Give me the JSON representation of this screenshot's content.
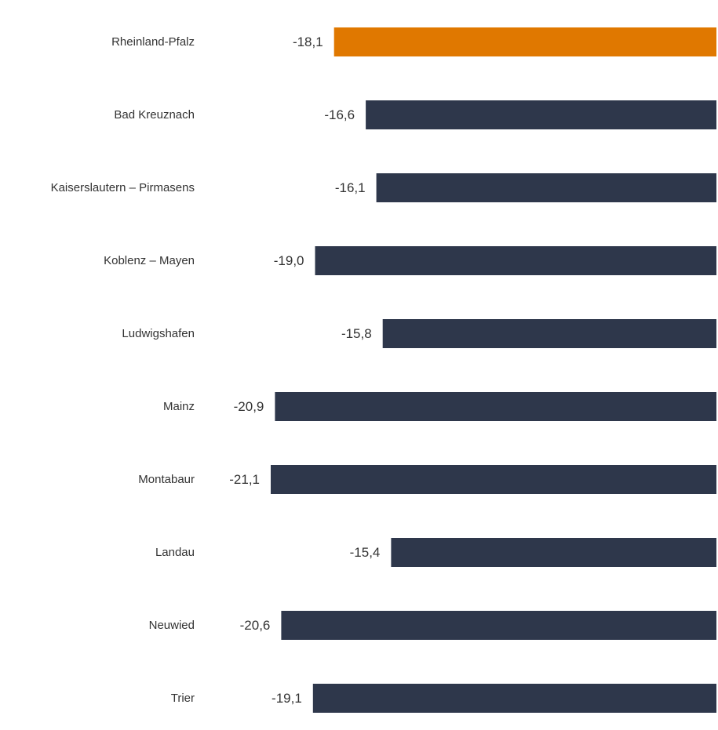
{
  "chart_data": {
    "type": "bar",
    "orientation": "horizontal",
    "direction": "negative-values-extend-left",
    "categories": [
      "Rheinland-Pfalz",
      "Bad Kreuznach",
      "Kaiserslautern – Pirmasens",
      "Koblenz – Mayen",
      "Ludwigshafen",
      "Mainz",
      "Montabaur",
      "Landau",
      "Neuwied",
      "Trier"
    ],
    "values": [
      -18.1,
      -16.6,
      -16.1,
      -19.0,
      -15.8,
      -20.9,
      -21.1,
      -15.4,
      -20.6,
      -19.1
    ],
    "value_labels": [
      "-18,1",
      "-16,6",
      "-16,1",
      "-19,0",
      "-15,8",
      "-20,9",
      "-21,1",
      "-15,4",
      "-20,6",
      "-19,1"
    ],
    "highlight_index": 0,
    "colors": {
      "highlight": "#E07800",
      "default": "#2E374B",
      "text": "#333333"
    },
    "xlim": [
      -21.1,
      0
    ],
    "grid": false,
    "legend": "none",
    "title": "",
    "xlabel": "",
    "ylabel": ""
  }
}
